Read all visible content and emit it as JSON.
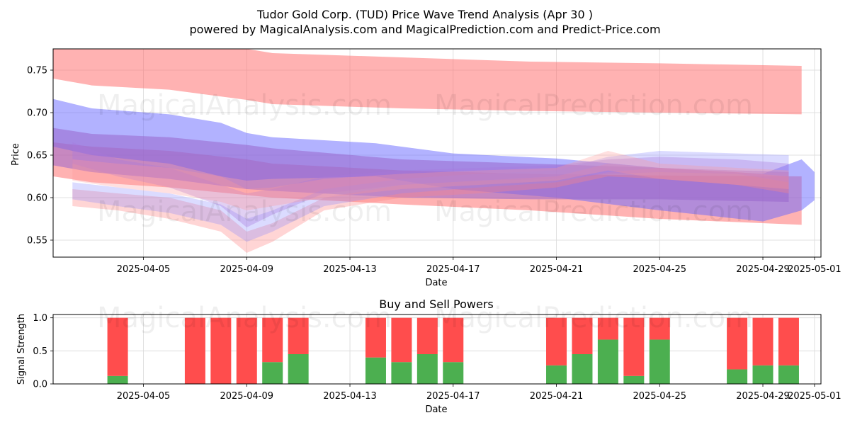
{
  "title_line1": "Tudor Gold Corp. (TUD) Price Wave Trend Analysis (Apr 30 )",
  "title_line2": "powered by MagicalAnalysis.com and MagicalPrediction.com and Predict-Price.com",
  "watermarks": [
    "MagicalAnalysis.com",
    "MagicalPrediction.com"
  ],
  "chart_data": [
    {
      "type": "area",
      "title": "",
      "xlabel": "Date",
      "ylabel": "Price",
      "xlim": [
        "2025-04-01T12:00",
        "2025-05-01T06:00"
      ],
      "ylim": [
        0.53,
        0.775
      ],
      "xticks": [
        "2025-04-05",
        "2025-04-09",
        "2025-04-13",
        "2025-04-17",
        "2025-04-21",
        "2025-04-25",
        "2025-04-29",
        "2025-05-01"
      ],
      "yticks": [
        0.55,
        0.6,
        0.65,
        0.7,
        0.75
      ],
      "ytick_labels": [
        "0.55",
        "0.60",
        "0.65",
        "0.70",
        "0.75"
      ],
      "grid": true,
      "bands": [
        {
          "name": "red-top",
          "color": "#ff6666",
          "opacity": 0.5,
          "x": [
            "2025-04-01T12:00",
            "2025-04-03",
            "2025-04-06",
            "2025-04-09",
            "2025-04-10",
            "2025-04-15",
            "2025-04-20",
            "2025-04-25",
            "2025-04-30T12:00"
          ],
          "upper": [
            0.78,
            0.78,
            0.78,
            0.775,
            0.77,
            0.765,
            0.76,
            0.758,
            0.755
          ],
          "lower": [
            0.74,
            0.732,
            0.727,
            0.715,
            0.71,
            0.705,
            0.702,
            0.7,
            0.698
          ]
        },
        {
          "name": "red-lower",
          "color": "#ff6666",
          "opacity": 0.5,
          "x": [
            "2025-04-01T12:00",
            "2025-04-03",
            "2025-04-06",
            "2025-04-09",
            "2025-04-10",
            "2025-04-15",
            "2025-04-20",
            "2025-04-25",
            "2025-04-30T12:00"
          ],
          "upper": [
            0.665,
            0.66,
            0.655,
            0.645,
            0.64,
            0.632,
            0.628,
            0.626,
            0.625
          ],
          "lower": [
            0.625,
            0.618,
            0.612,
            0.603,
            0.6,
            0.592,
            0.585,
            0.575,
            0.568
          ]
        },
        {
          "name": "blue-band",
          "color": "#6666ff",
          "opacity": 0.5,
          "x": [
            "2025-04-01T12:00",
            "2025-04-03",
            "2025-04-06",
            "2025-04-08",
            "2025-04-09",
            "2025-04-10",
            "2025-04-14",
            "2025-04-17",
            "2025-04-21",
            "2025-04-25",
            "2025-04-29",
            "2025-04-30T12:00",
            "2025-05-01"
          ],
          "upper": [
            0.716,
            0.705,
            0.698,
            0.688,
            0.676,
            0.671,
            0.664,
            0.652,
            0.646,
            0.635,
            0.628,
            0.645,
            0.63
          ],
          "lower": [
            0.66,
            0.65,
            0.64,
            0.625,
            0.62,
            0.622,
            0.625,
            0.61,
            0.6,
            0.585,
            0.572,
            0.585,
            0.597
          ]
        },
        {
          "name": "purple-band",
          "color": "#9966cc",
          "opacity": 0.55,
          "x": [
            "2025-04-01T12:00",
            "2025-04-03",
            "2025-04-06",
            "2025-04-09",
            "2025-04-10",
            "2025-04-15",
            "2025-04-20",
            "2025-04-25",
            "2025-04-30"
          ],
          "upper": [
            0.682,
            0.675,
            0.671,
            0.662,
            0.658,
            0.645,
            0.64,
            0.635,
            0.63
          ],
          "lower": [
            0.638,
            0.63,
            0.622,
            0.61,
            0.608,
            0.6,
            0.598,
            0.598,
            0.595
          ]
        }
      ],
      "waves": [
        {
          "color": "#ff8888",
          "opacity": 0.35,
          "x": [
            "2025-04-02T06:00",
            "2025-04-04",
            "2025-04-06",
            "2025-04-08",
            "2025-04-09",
            "2025-04-10",
            "2025-04-12",
            "2025-04-15",
            "2025-04-18",
            "2025-04-21",
            "2025-04-23",
            "2025-04-25",
            "2025-04-28",
            "2025-04-30"
          ],
          "upper": [
            0.61,
            0.605,
            0.6,
            0.585,
            0.56,
            0.57,
            0.6,
            0.615,
            0.62,
            0.625,
            0.64,
            0.635,
            0.63,
            0.625
          ],
          "lower": [
            0.59,
            0.585,
            0.575,
            0.56,
            0.535,
            0.548,
            0.585,
            0.6,
            0.605,
            0.612,
            0.625,
            0.622,
            0.615,
            0.605
          ]
        },
        {
          "color": "#8888ff",
          "opacity": 0.3,
          "x": [
            "2025-04-02T06:00",
            "2025-04-04",
            "2025-04-06",
            "2025-04-08",
            "2025-04-09",
            "2025-04-10",
            "2025-04-12",
            "2025-04-15",
            "2025-04-18",
            "2025-04-21",
            "2025-04-23",
            "2025-04-25",
            "2025-04-28",
            "2025-04-30"
          ],
          "upper": [
            0.618,
            0.612,
            0.605,
            0.592,
            0.575,
            0.585,
            0.61,
            0.622,
            0.628,
            0.632,
            0.648,
            0.655,
            0.652,
            0.65
          ],
          "lower": [
            0.598,
            0.59,
            0.582,
            0.568,
            0.548,
            0.56,
            0.59,
            0.605,
            0.612,
            0.618,
            0.63,
            0.635,
            0.632,
            0.628
          ]
        },
        {
          "color": "#aa77dd",
          "opacity": 0.35,
          "x": [
            "2025-04-02T06:00",
            "2025-04-04",
            "2025-04-06",
            "2025-04-08",
            "2025-04-09",
            "2025-04-10",
            "2025-04-12",
            "2025-04-15",
            "2025-04-18",
            "2025-04-21",
            "2025-04-23",
            "2025-04-25",
            "2025-04-28",
            "2025-04-30"
          ],
          "upper": [
            0.665,
            0.645,
            0.635,
            0.615,
            0.605,
            0.61,
            0.625,
            0.632,
            0.635,
            0.638,
            0.645,
            0.648,
            0.645,
            0.64
          ],
          "lower": [
            0.64,
            0.625,
            0.612,
            0.59,
            0.565,
            0.58,
            0.605,
            0.615,
            0.62,
            0.622,
            0.628,
            0.63,
            0.628,
            0.618
          ]
        },
        {
          "color": "#ff9999",
          "opacity": 0.3,
          "x": [
            "2025-04-02T06:00",
            "2025-04-04",
            "2025-04-06",
            "2025-04-08",
            "2025-04-09",
            "2025-04-10",
            "2025-04-12",
            "2025-04-15",
            "2025-04-18",
            "2025-04-21",
            "2025-04-23",
            "2025-04-25",
            "2025-04-28",
            "2025-04-30"
          ],
          "upper": [
            0.645,
            0.64,
            0.635,
            0.625,
            0.61,
            0.612,
            0.622,
            0.628,
            0.632,
            0.635,
            0.655,
            0.64,
            0.635,
            0.632
          ],
          "lower": [
            0.62,
            0.612,
            0.605,
            0.595,
            0.585,
            0.59,
            0.6,
            0.61,
            0.615,
            0.62,
            0.632,
            0.622,
            0.615,
            0.61
          ]
        }
      ]
    },
    {
      "type": "bar",
      "title": "Buy and Sell Powers",
      "xlabel": "Date",
      "ylabel": "Signal Strength",
      "xlim": [
        "2025-04-01T12:00",
        "2025-05-01T06:00"
      ],
      "ylim": [
        0,
        1.05
      ],
      "yticks": [
        0.0,
        0.5,
        1.0
      ],
      "ytick_labels": [
        "0.0",
        "0.5",
        "1.0"
      ],
      "xticks": [
        "2025-04-05",
        "2025-04-09",
        "2025-04-13",
        "2025-04-17",
        "2025-04-21",
        "2025-04-25",
        "2025-04-29",
        "2025-05-01"
      ],
      "grid": true,
      "buy_color": "#4caf50",
      "sell_color": "#ff4d4d",
      "series": [
        {
          "name": "Buy",
          "color": "#4caf50"
        },
        {
          "name": "Sell",
          "color": "#ff4d4d"
        }
      ],
      "dates": [
        "2025-04-04",
        "2025-04-07",
        "2025-04-08",
        "2025-04-09",
        "2025-04-10",
        "2025-04-11",
        "2025-04-14",
        "2025-04-15",
        "2025-04-16",
        "2025-04-17",
        "2025-04-21",
        "2025-04-22",
        "2025-04-23",
        "2025-04-24",
        "2025-04-25",
        "2025-04-28",
        "2025-04-29",
        "2025-04-30"
      ],
      "buy": [
        0.12,
        0.0,
        0.0,
        0.0,
        0.33,
        0.45,
        0.4,
        0.33,
        0.45,
        0.33,
        0.28,
        0.45,
        0.67,
        0.12,
        0.67,
        0.22,
        0.28,
        0.28
      ],
      "sell": [
        0.88,
        1.0,
        1.0,
        1.0,
        0.67,
        0.55,
        0.6,
        0.67,
        0.55,
        0.67,
        0.72,
        0.55,
        0.33,
        0.88,
        0.33,
        0.78,
        0.72,
        0.72
      ]
    }
  ]
}
